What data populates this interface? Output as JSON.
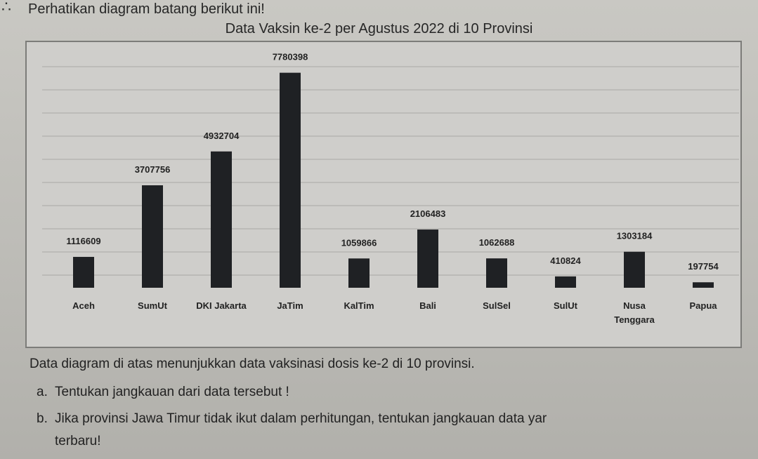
{
  "header": {
    "intro": "Perhatikan diagram batang berikut ini!"
  },
  "chart_data": {
    "type": "bar",
    "title": "Data Vaksin ke-2 per Agustus 2022 di 10 Provinsi",
    "categories": [
      "Aceh",
      "SumUt",
      "DKI Jakarta",
      "JaTim",
      "KalTim",
      "Bali",
      "SulSel",
      "SulUt",
      "Nusa Tenggara",
      "Papua"
    ],
    "values": [
      1116609,
      3707756,
      4932704,
      7780398,
      1059866,
      2106483,
      1062688,
      410824,
      1303184,
      197754
    ],
    "value_labels": [
      "1116609",
      "3707756",
      "4932704",
      "7780398",
      "1059866",
      "2106483",
      "1062688",
      "410824",
      "1303184",
      "197754"
    ],
    "xlabel": "",
    "ylabel": "",
    "ylim": [
      0,
      8000000
    ],
    "grid": true,
    "bar_color": "#1f2124"
  },
  "questions": {
    "intro": "Data diagram di atas menunjukkan data vaksinasi dosis ke-2 di 10 provinsi.",
    "a_marker": "a.",
    "a_text": "Tentukan jangkauan dari data tersebut !",
    "b_marker": "b.",
    "b_text": "Jika provinsi Jawa Timur tidak ikut dalam perhitungan, tentukan jangkauan data yar",
    "b_text_cont": "terbaru!"
  }
}
